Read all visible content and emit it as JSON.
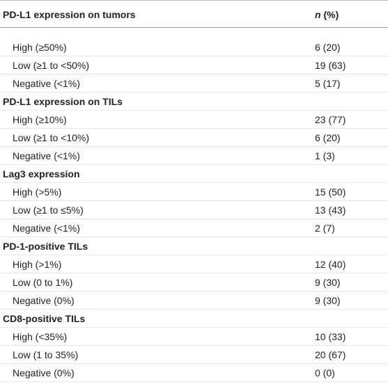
{
  "header": {
    "title": "PD-L1 expression on tumors",
    "col_italic": "n",
    "col_rest": "(%)"
  },
  "groups": [
    {
      "rows": [
        [
          "High (≥50%)",
          "6 (20)"
        ],
        [
          "Low (≥1 to <50%)",
          "19 (63)"
        ],
        [
          "Negative (<1%)",
          "5 (17)"
        ]
      ]
    },
    {
      "title": "PD-L1 expression on TILs",
      "rows": [
        [
          "High (≥10%)",
          "23 (77)"
        ],
        [
          "Low (≥1 to <10%)",
          "6 (20)"
        ],
        [
          "Negative (<1%)",
          "1 (3)"
        ]
      ]
    },
    {
      "title": "Lag3 expression",
      "rows": [
        [
          "High (>5%)",
          "15 (50)"
        ],
        [
          "Low (≥1 to ≤5%)",
          "13 (43)"
        ],
        [
          "Negative (<1%)",
          "2 (7)"
        ]
      ]
    },
    {
      "title": "PD-1-positive TILs",
      "rows": [
        [
          "High (>1%)",
          "12 (40)"
        ],
        [
          "Low (0 to 1%)",
          "9 (30)"
        ],
        [
          "Negative (0%)",
          "9 (30)"
        ]
      ]
    },
    {
      "title": "CD8-positive TILs",
      "rows": [
        [
          "High (<35%)",
          "10 (33)"
        ],
        [
          "Low (1 to 35%)",
          "20 (67)"
        ],
        [
          "Negative (0%)",
          "0 (0)"
        ]
      ]
    }
  ]
}
